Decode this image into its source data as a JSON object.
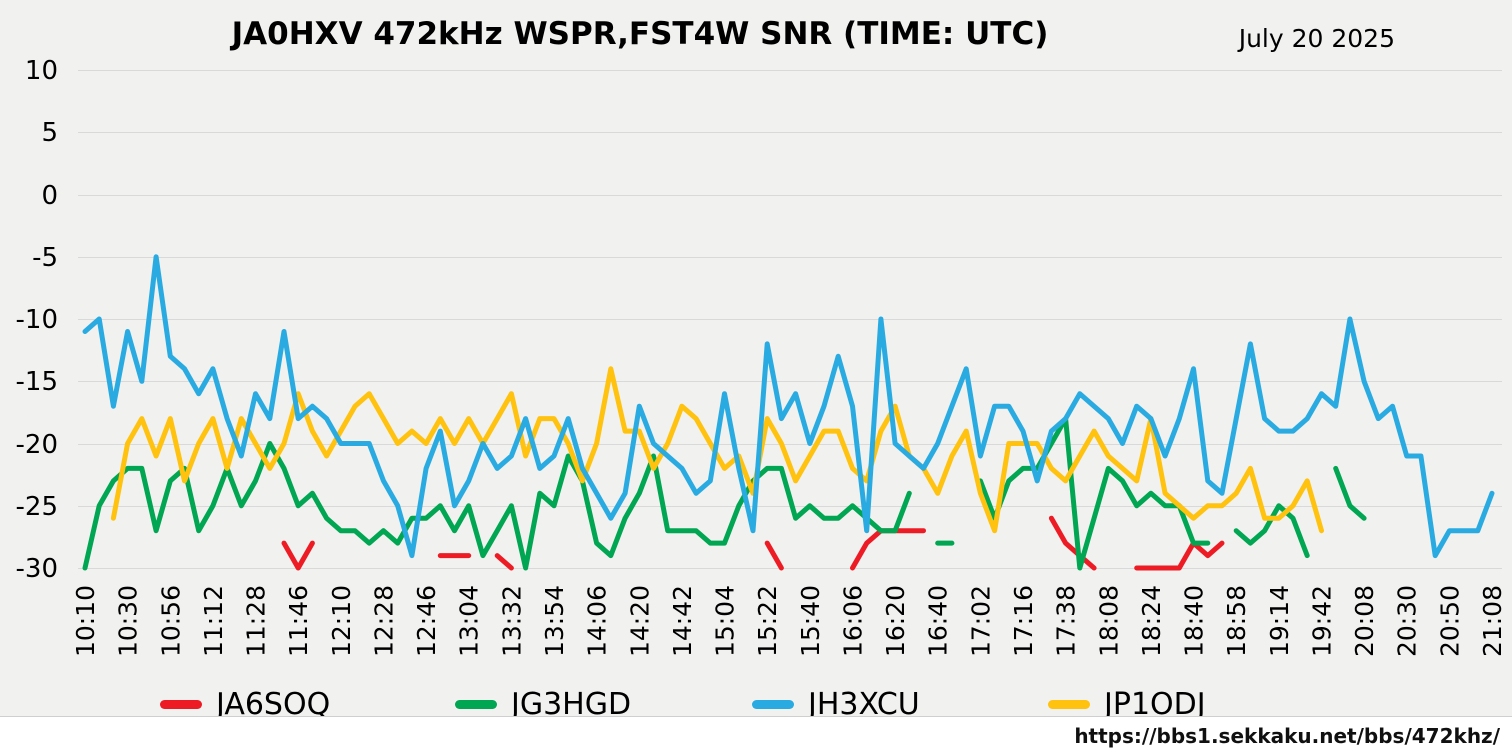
{
  "header": {
    "title": "JA0HXV 472kHz WSPR,FST4W SNR (TIME: UTC)",
    "date": "July 20 2025"
  },
  "footer": {
    "url": "https://bbs1.sekkaku.net/bbs/472khz/"
  },
  "colors": {
    "background": "#f1f1f0",
    "grid": "#d9d9d9",
    "text": "#000000",
    "red": "#ed1c24",
    "green": "#00a651",
    "blue": "#29abe2",
    "yellow": "#ffc20e"
  },
  "legend": [
    {
      "label": "JA6SOQ",
      "color": "#ed1c24"
    },
    {
      "label": "JG3HGD",
      "color": "#00a651"
    },
    {
      "label": "JH3XCU",
      "color": "#29abe2"
    },
    {
      "label": "JP1ODJ",
      "color": "#ffc20e"
    }
  ],
  "chart_data": {
    "type": "line",
    "title": "JA0HXV 472kHz WSPR,FST4W SNR (TIME: UTC)",
    "xlabel": "",
    "ylabel": "",
    "ylim": [
      -30,
      10
    ],
    "y_ticks": [
      10,
      5,
      0,
      -5,
      -10,
      -15,
      -20,
      -25,
      -30
    ],
    "grid": "horizontal",
    "legend_position": "bottom",
    "points_per_tick": 3,
    "x_tick_labels": [
      "10:10",
      "10:30",
      "10:56",
      "11:12",
      "11:28",
      "11:46",
      "12:10",
      "12:28",
      "12:46",
      "13:04",
      "13:32",
      "13:54",
      "14:06",
      "14:20",
      "14:42",
      "15:04",
      "15:22",
      "15:40",
      "16:06",
      "16:20",
      "16:40",
      "17:02",
      "17:16",
      "17:38",
      "18:08",
      "18:24",
      "18:40",
      "18:58",
      "19:14",
      "19:42",
      "20:08",
      "20:30",
      "20:50",
      "21:08"
    ],
    "series": [
      {
        "name": "JA6SOQ",
        "color": "#ed1c24",
        "values": [
          null,
          null,
          null,
          null,
          null,
          null,
          null,
          null,
          null,
          null,
          null,
          null,
          null,
          null,
          -28,
          -30,
          -28,
          null,
          null,
          null,
          null,
          null,
          null,
          null,
          null,
          -29,
          -29,
          -29,
          null,
          -29,
          -30,
          null,
          null,
          null,
          null,
          null,
          null,
          null,
          null,
          null,
          null,
          null,
          null,
          null,
          null,
          null,
          null,
          null,
          -28,
          -30,
          null,
          null,
          null,
          null,
          -30,
          -28,
          -27,
          -27,
          -27,
          -27,
          null,
          null,
          null,
          null,
          null,
          null,
          null,
          null,
          -26,
          -28,
          -29,
          -30,
          null,
          null,
          -30,
          -30,
          -30,
          -30,
          -28,
          -29,
          -28,
          null,
          null,
          null,
          null,
          null,
          null,
          null,
          null,
          null,
          null,
          null,
          null,
          null,
          null,
          null,
          null,
          null,
          null,
          null
        ]
      },
      {
        "name": "JG3HGD",
        "color": "#00a651",
        "values": [
          -30,
          -25,
          -23,
          -22,
          -22,
          -27,
          -23,
          -22,
          -27,
          -25,
          -22,
          -25,
          -23,
          -20,
          -22,
          -25,
          -24,
          -26,
          -27,
          -27,
          -28,
          -27,
          -28,
          -26,
          -26,
          -25,
          -27,
          -25,
          -29,
          -27,
          -25,
          -30,
          -24,
          -25,
          -21,
          -23,
          -28,
          -29,
          -26,
          -24,
          -21,
          -27,
          -27,
          -27,
          -28,
          -28,
          -25,
          -23,
          -22,
          -22,
          -26,
          -25,
          -26,
          -26,
          -25,
          -26,
          -27,
          -27,
          -24,
          null,
          -28,
          -28,
          null,
          -23,
          -26,
          -23,
          -22,
          -22,
          -20,
          -18,
          -30,
          -26,
          -22,
          -23,
          -25,
          -24,
          -25,
          -25,
          -28,
          -28,
          null,
          -27,
          -28,
          -27,
          -25,
          -26,
          -29,
          null,
          -22,
          -25,
          -26,
          null,
          null,
          null,
          null,
          null,
          null,
          null,
          null,
          null
        ]
      },
      {
        "name": "JH3XCU",
        "color": "#29abe2",
        "values": [
          -11,
          -10,
          -17,
          -11,
          -15,
          -5,
          -13,
          -14,
          -16,
          -14,
          -18,
          -21,
          -16,
          -18,
          -11,
          -18,
          -17,
          -18,
          -20,
          -20,
          -20,
          -23,
          -25,
          -29,
          -22,
          -19,
          -25,
          -23,
          -20,
          -22,
          -21,
          -18,
          -22,
          -21,
          -18,
          -22,
          -24,
          -26,
          -24,
          -17,
          -20,
          -21,
          -22,
          -24,
          -23,
          -16,
          -22,
          -27,
          -12,
          -18,
          -16,
          -20,
          -17,
          -13,
          -17,
          -27,
          -10,
          -20,
          -21,
          -22,
          -20,
          -17,
          -14,
          -21,
          -17,
          -17,
          -19,
          -23,
          -19,
          -18,
          -16,
          -17,
          -18,
          -20,
          -17,
          -18,
          -21,
          -18,
          -14,
          -23,
          -24,
          -18,
          -12,
          -18,
          -19,
          -19,
          -18,
          -16,
          -17,
          -10,
          -15,
          -18,
          -17,
          -21,
          -21,
          -29,
          -27,
          -27,
          -27,
          -24
        ]
      },
      {
        "name": "JP1ODJ",
        "color": "#ffc20e",
        "values": [
          null,
          null,
          -26,
          -20,
          -18,
          -21,
          -18,
          -23,
          -20,
          -18,
          -22,
          -18,
          -20,
          -22,
          -20,
          -16,
          -19,
          -21,
          -19,
          -17,
          -16,
          -18,
          -20,
          -19,
          -20,
          -18,
          -20,
          -18,
          -20,
          -18,
          -16,
          -21,
          -18,
          -18,
          -20,
          -23,
          -20,
          -14,
          -19,
          -19,
          -22,
          -20,
          -17,
          -18,
          -20,
          -22,
          -21,
          -24,
          -18,
          -20,
          -23,
          -21,
          -19,
          -19,
          -22,
          -23,
          -19,
          -17,
          -21,
          -22,
          -24,
          -21,
          -19,
          -24,
          -27,
          -20,
          -20,
          -20,
          -22,
          -23,
          -21,
          -19,
          -21,
          -22,
          -23,
          -18,
          -24,
          -25,
          -26,
          -25,
          -25,
          -24,
          -22,
          -26,
          -26,
          -25,
          -23,
          -27,
          null,
          null,
          null,
          null,
          null,
          null,
          null,
          null,
          null,
          null,
          null,
          null
        ]
      }
    ]
  }
}
